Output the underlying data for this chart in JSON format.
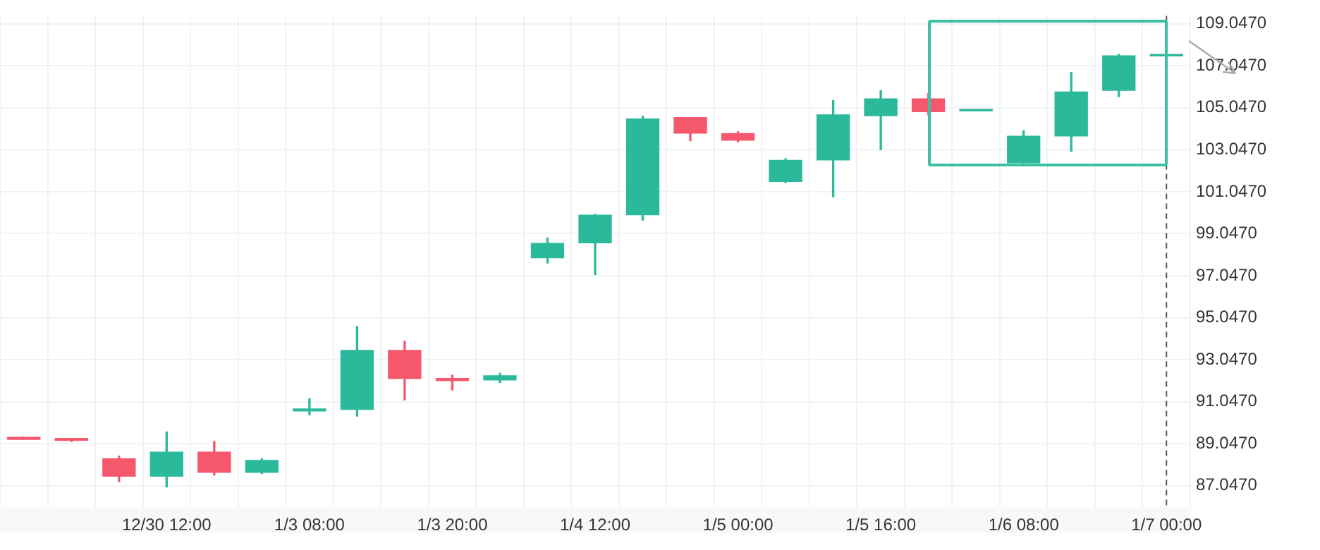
{
  "chart_data": {
    "type": "candlestick",
    "categories": [
      null,
      null,
      null,
      "12/30 12:00",
      null,
      null,
      "1/3 08:00",
      null,
      null,
      "1/3 20:00",
      null,
      null,
      "1/4 12:00",
      null,
      null,
      "1/5 00:00",
      null,
      null,
      "1/5 16:00",
      null,
      null,
      "1/6 08:00",
      null,
      null,
      "1/7 00:00"
    ],
    "ohlc": [
      [
        89.35,
        89.35,
        89.25,
        89.25
      ],
      [
        89.3,
        89.3,
        89.15,
        89.2
      ],
      [
        88.32,
        88.45,
        87.23,
        87.49
      ],
      [
        87.49,
        89.6,
        86.98,
        88.64
      ],
      [
        88.64,
        89.15,
        87.55,
        87.68
      ],
      [
        87.68,
        88.32,
        87.62,
        88.25
      ],
      [
        90.6,
        91.19,
        90.42,
        90.7
      ],
      [
        90.68,
        94.63,
        90.36,
        93.49
      ],
      [
        93.49,
        93.93,
        91.13,
        92.15
      ],
      [
        92.15,
        92.3,
        91.6,
        92.05
      ],
      [
        92.08,
        92.4,
        91.95,
        92.28
      ],
      [
        97.9,
        98.85,
        97.65,
        98.59
      ],
      [
        98.61,
        99.97,
        97.1,
        99.93
      ],
      [
        99.95,
        104.65,
        99.69,
        104.52
      ],
      [
        104.58,
        104.58,
        103.48,
        103.84
      ],
      [
        103.82,
        103.9,
        103.42,
        103.5
      ],
      [
        101.54,
        102.62,
        101.48,
        102.54
      ],
      [
        102.56,
        105.39,
        100.8,
        104.71
      ],
      [
        104.67,
        105.86,
        103.05,
        105.47
      ],
      [
        105.47,
        105.73,
        104.71,
        104.86
      ],
      [
        104.9,
        104.9,
        104.9,
        104.9
      ],
      [
        102.43,
        103.95,
        102.35,
        103.69
      ],
      [
        103.7,
        106.73,
        102.97,
        105.8
      ],
      [
        105.88,
        107.6,
        105.58,
        107.52
      ],
      [
        107.52,
        108.11,
        107.3,
        107.56
      ]
    ],
    "colors": [
      "#f5576c",
      "#f5576c",
      "#f5576c",
      "#2bb99b",
      "#f5576c",
      "#2bb99b",
      "#2bb99b",
      "#2bb99b",
      "#f5576c",
      "#f5576c",
      "#2bb99b",
      "#2bb99b",
      "#2bb99b",
      "#2bb99b",
      "#f5576c",
      "#f5576c",
      "#2bb99b",
      "#2bb99b",
      "#2bb99b",
      "#f5576c",
      "#2bb99b",
      "#2bb99b",
      "#2bb99b",
      "#2bb99b",
      "#2bb99b"
    ],
    "ylim": [
      86.02,
      109.43
    ],
    "yticks": [
      {
        "value": 87.047,
        "label": "87.0470"
      },
      {
        "value": 89.047,
        "label": "89.0470"
      },
      {
        "value": 91.047,
        "label": "91.0470"
      },
      {
        "value": 93.047,
        "label": "93.0470"
      },
      {
        "value": 95.047,
        "label": "95.0470"
      },
      {
        "value": 97.047,
        "label": "97.0470"
      },
      {
        "value": 99.047,
        "label": "99.0470"
      },
      {
        "value": 101.047,
        "label": "101.0470"
      },
      {
        "value": 103.047,
        "label": "103.0470"
      },
      {
        "value": 105.047,
        "label": "105.0470"
      },
      {
        "value": 107.047,
        "label": "107.0470"
      },
      {
        "value": 109.047,
        "label": "109.0470"
      }
    ],
    "ref_lines": [
      {
        "axis": "x",
        "value": "1/7 00:00",
        "color": "#555555",
        "line_style": "dashed"
      }
    ],
    "grid": true,
    "legend": false
  }
}
